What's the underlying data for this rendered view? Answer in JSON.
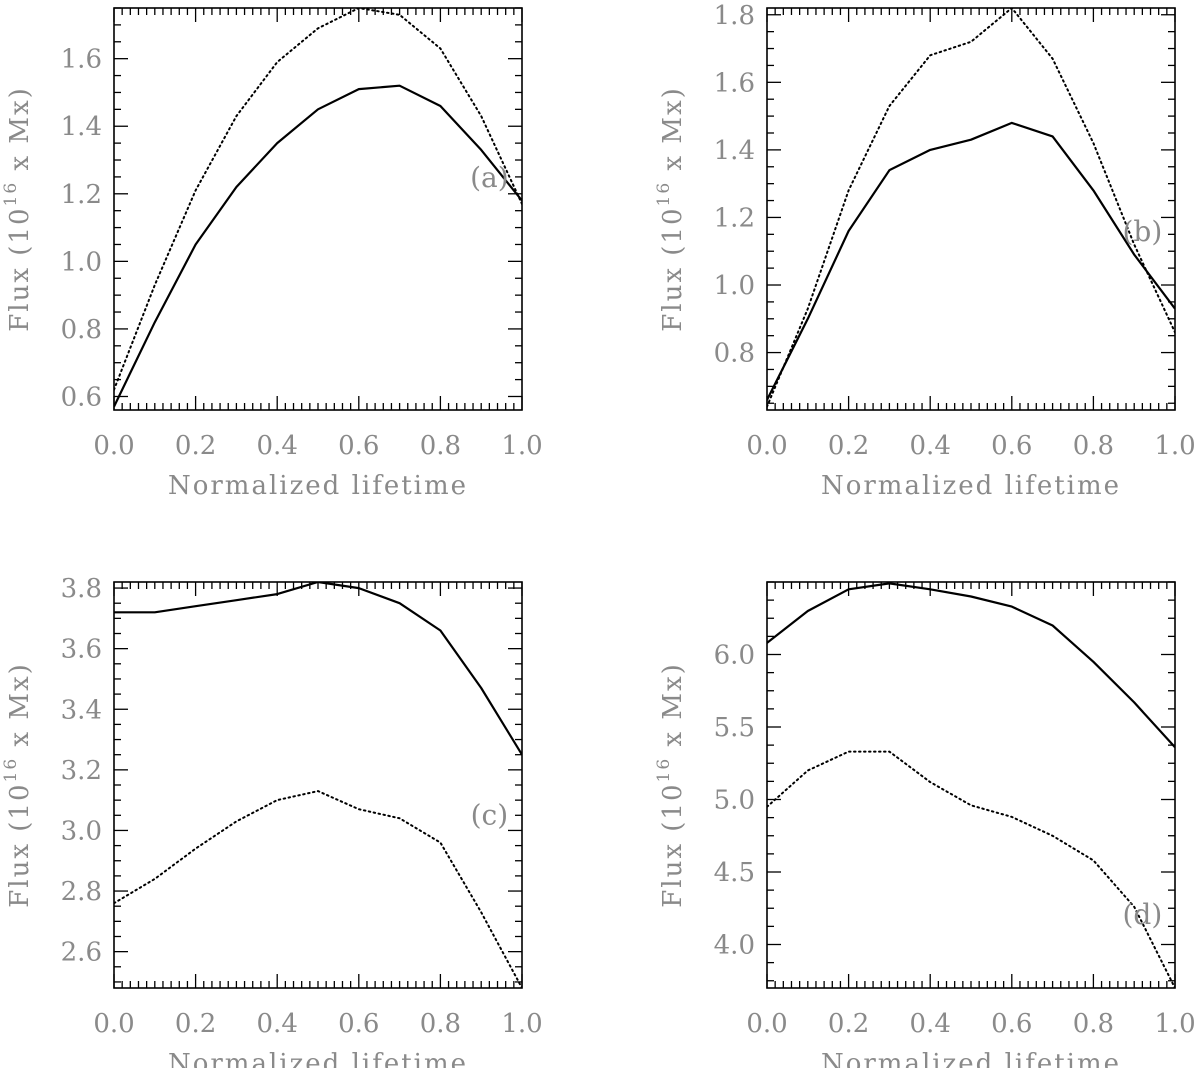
{
  "chart_data": [
    {
      "type": "line",
      "panel_label": "(a)",
      "label_pos": [
        0.92,
        1.22
      ],
      "xlabel": "Normalized lifetime",
      "ylabel": "Flux (10^16 x Mx)",
      "ylabel_base": "Flux (10",
      "ylabel_exp": "16",
      "ylabel_tail": " x Mx)",
      "xlim": [
        0,
        1
      ],
      "ylim": [
        0.56,
        1.75
      ],
      "xticks": [
        "0.0",
        "0.2",
        "0.4",
        "0.6",
        "0.8",
        "1.0"
      ],
      "yticks": [
        "0.6",
        "0.8",
        "1.0",
        "1.2",
        "1.4",
        "1.6"
      ],
      "x": [
        0,
        0.1,
        0.2,
        0.3,
        0.4,
        0.5,
        0.6,
        0.7,
        0.8,
        0.9,
        1.0
      ],
      "series": [
        {
          "style": "solid",
          "values": [
            0.57,
            0.82,
            1.05,
            1.22,
            1.35,
            1.45,
            1.51,
            1.52,
            1.46,
            1.33,
            1.18
          ]
        },
        {
          "style": "dotted",
          "values": [
            0.62,
            0.93,
            1.21,
            1.43,
            1.59,
            1.69,
            1.75,
            1.73,
            1.63,
            1.43,
            1.17
          ]
        }
      ]
    },
    {
      "type": "line",
      "panel_label": "(b)",
      "label_pos": [
        0.92,
        1.13
      ],
      "xlabel": "Normalized lifetime",
      "ylabel": "Flux (10^16 x Mx)",
      "ylabel_base": "Flux (10",
      "ylabel_exp": "16",
      "ylabel_tail": " x Mx)",
      "xlim": [
        0,
        1
      ],
      "ylim": [
        0.63,
        1.82
      ],
      "xticks": [
        "0.0",
        "0.2",
        "0.4",
        "0.6",
        "0.8",
        "1.0"
      ],
      "yticks": [
        "0.8",
        "1.0",
        "1.2",
        "1.4",
        "1.6",
        "1.8"
      ],
      "x": [
        0,
        0.1,
        0.2,
        0.3,
        0.4,
        0.5,
        0.6,
        0.7,
        0.8,
        0.9,
        1.0
      ],
      "series": [
        {
          "style": "solid",
          "values": [
            0.66,
            0.9,
            1.16,
            1.34,
            1.4,
            1.43,
            1.48,
            1.44,
            1.28,
            1.09,
            0.93
          ]
        },
        {
          "style": "dotted",
          "values": [
            0.64,
            0.93,
            1.28,
            1.53,
            1.68,
            1.72,
            1.82,
            1.67,
            1.42,
            1.12,
            0.86
          ]
        }
      ]
    },
    {
      "type": "line",
      "panel_label": "(c)",
      "label_pos": [
        0.92,
        3.02
      ],
      "xlabel": "Normalized lifetime",
      "ylabel": "Flux (10^16 x Mx)",
      "ylabel_base": "Flux (10",
      "ylabel_exp": "16",
      "ylabel_tail": " x Mx)",
      "xlim": [
        0,
        1
      ],
      "ylim": [
        2.48,
        3.82
      ],
      "xticks": [
        "0.0",
        "0.2",
        "0.4",
        "0.6",
        "0.8",
        "1.0"
      ],
      "yticks": [
        "2.6",
        "2.8",
        "3.0",
        "3.2",
        "3.4",
        "3.6",
        "3.8"
      ],
      "x": [
        0,
        0.1,
        0.2,
        0.3,
        0.4,
        0.5,
        0.6,
        0.7,
        0.8,
        0.9,
        1.0
      ],
      "series": [
        {
          "style": "solid",
          "values": [
            3.72,
            3.72,
            3.74,
            3.76,
            3.78,
            3.82,
            3.8,
            3.75,
            3.66,
            3.47,
            3.25
          ]
        },
        {
          "style": "dotted",
          "values": [
            2.76,
            2.84,
            2.94,
            3.03,
            3.1,
            3.13,
            3.07,
            3.04,
            2.96,
            2.73,
            2.48
          ]
        }
      ]
    },
    {
      "type": "line",
      "panel_label": "(d)",
      "label_pos": [
        0.92,
        4.14
      ],
      "xlabel": "Normalized lifetime",
      "ylabel": "Flux (10^16 x Mx)",
      "ylabel_base": "Flux (10",
      "ylabel_exp": "16",
      "ylabel_tail": " x Mx)",
      "xlim": [
        0,
        1
      ],
      "ylim": [
        3.7,
        6.5
      ],
      "xticks": [
        "0.0",
        "0.2",
        "0.4",
        "0.6",
        "0.8",
        "1.0"
      ],
      "yticks": [
        "4.0",
        "4.5",
        "5.0",
        "5.5",
        "6.0"
      ],
      "x": [
        0,
        0.1,
        0.2,
        0.3,
        0.4,
        0.5,
        0.6,
        0.7,
        0.8,
        0.9,
        1.0
      ],
      "series": [
        {
          "style": "solid",
          "values": [
            6.08,
            6.3,
            6.45,
            6.49,
            6.45,
            6.4,
            6.33,
            6.2,
            5.95,
            5.67,
            5.36
          ]
        },
        {
          "style": "dotted",
          "values": [
            4.95,
            5.2,
            5.33,
            5.33,
            5.12,
            4.96,
            4.88,
            4.75,
            4.58,
            4.26,
            3.7
          ]
        }
      ]
    }
  ]
}
